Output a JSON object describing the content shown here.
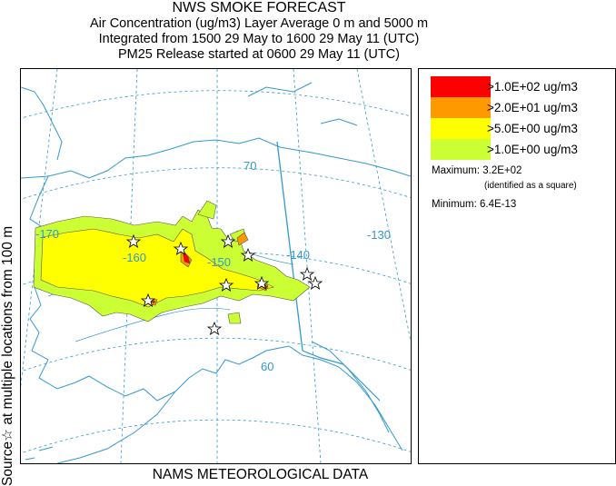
{
  "title": {
    "main": "NWS SMOKE FORECAST",
    "line1": "Air Concentration (ug/m3) Layer Average    0 m and  5000 m",
    "line2": "Integrated from 1500 29 May to 1600 29 May 11 (UTC)",
    "line3": "PM25 Release started at 0600 29 May 11 (UTC)"
  },
  "side_label": "Source☆ at multiple locations from  100 m",
  "bottom_label": "NAMS METEOROLOGICAL DATA",
  "map": {
    "longitude_labels": [
      "-170",
      "-160",
      "-150",
      "-140",
      "-130"
    ],
    "latitude_labels": [
      "70",
      "60"
    ],
    "colors": {
      "coast": "#3399cc",
      "grid": "#3399cc",
      "plume_very_low": "#ccff33",
      "plume_low": "#ffff00",
      "plume_mid": "#ff9900",
      "plume_high": "#ff0000",
      "contour": "#555555"
    },
    "source_marker": "star-outline"
  },
  "legend": {
    "entries": [
      {
        "label": ">1.0E+02 ug/m3",
        "color": "#ff0000"
      },
      {
        "label": ">2.0E+01 ug/m3",
        "color": "#ff9900"
      },
      {
        "label": ">5.0E+00 ug/m3",
        "color": "#ffff00"
      },
      {
        "label": ">1.0E+00 ug/m3",
        "color": "#ccff33"
      }
    ],
    "maximum": "Maximum: 3.2E+02",
    "maximum_note": "(identified as a square)",
    "minimum": "Minimum: 6.4E-13"
  }
}
